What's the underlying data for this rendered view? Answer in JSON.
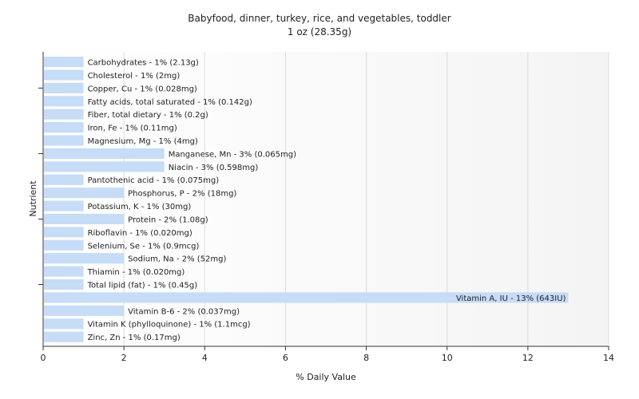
{
  "chart_data": {
    "type": "bar",
    "orientation": "horizontal",
    "title": "Babyfood, dinner, turkey, rice, and vegetables, toddler",
    "subtitle": "1 oz (28.35g)",
    "xlabel": "% Daily Value",
    "ylabel": "Nutrient",
    "xlim": [
      0,
      14
    ],
    "xticks": [
      "0",
      "2",
      "4",
      "6",
      "8",
      "10",
      "12",
      "14"
    ],
    "grid": true,
    "categories": [
      "Carbohydrates",
      "Cholesterol",
      "Copper, Cu",
      "Fatty acids, total saturated",
      "Fiber, total dietary",
      "Iron, Fe",
      "Magnesium, Mg",
      "Manganese, Mn",
      "Niacin",
      "Pantothenic acid",
      "Phosphorus, P",
      "Potassium, K",
      "Protein",
      "Riboflavin",
      "Selenium, Se",
      "Sodium, Na",
      "Thiamin",
      "Total lipid (fat)",
      "Vitamin A, IU",
      "Vitamin B-6",
      "Vitamin K (phylloquinone)",
      "Zinc, Zn"
    ],
    "values": [
      1,
      1,
      1,
      1,
      1,
      1,
      1,
      3,
      3,
      1,
      2,
      1,
      2,
      1,
      1,
      2,
      1,
      1,
      13,
      2,
      1,
      1
    ],
    "labels": [
      "Carbohydrates - 1% (2.13g)",
      "Cholesterol - 1% (2mg)",
      "Copper, Cu - 1% (0.028mg)",
      "Fatty acids, total saturated - 1% (0.142g)",
      "Fiber, total dietary - 1% (0.2g)",
      "Iron, Fe - 1% (0.11mg)",
      "Magnesium, Mg - 1% (4mg)",
      "Manganese, Mn - 3% (0.065mg)",
      "Niacin - 3% (0.598mg)",
      "Pantothenic acid - 1% (0.075mg)",
      "Phosphorus, P - 2% (18mg)",
      "Potassium, K - 1% (30mg)",
      "Protein - 2% (1.08g)",
      "Riboflavin - 1% (0.020mg)",
      "Selenium, Se - 1% (0.9mcg)",
      "Sodium, Na - 2% (52mg)",
      "Thiamin - 1% (0.020mg)",
      "Total lipid (fat) - 1% (0.45g)",
      "Vitamin A, IU - 13% (643IU)",
      "Vitamin B-6 - 2% (0.037mg)",
      "Vitamin K (phylloquinone) - 1% (1.1mcg)",
      "Zinc, Zn - 1% (0.17mg)"
    ],
    "colors": {
      "bar": "#c6dcf7",
      "grid": "#dddddd",
      "axis": "#333333",
      "plot_bg_right": "#f4f4f4"
    }
  }
}
